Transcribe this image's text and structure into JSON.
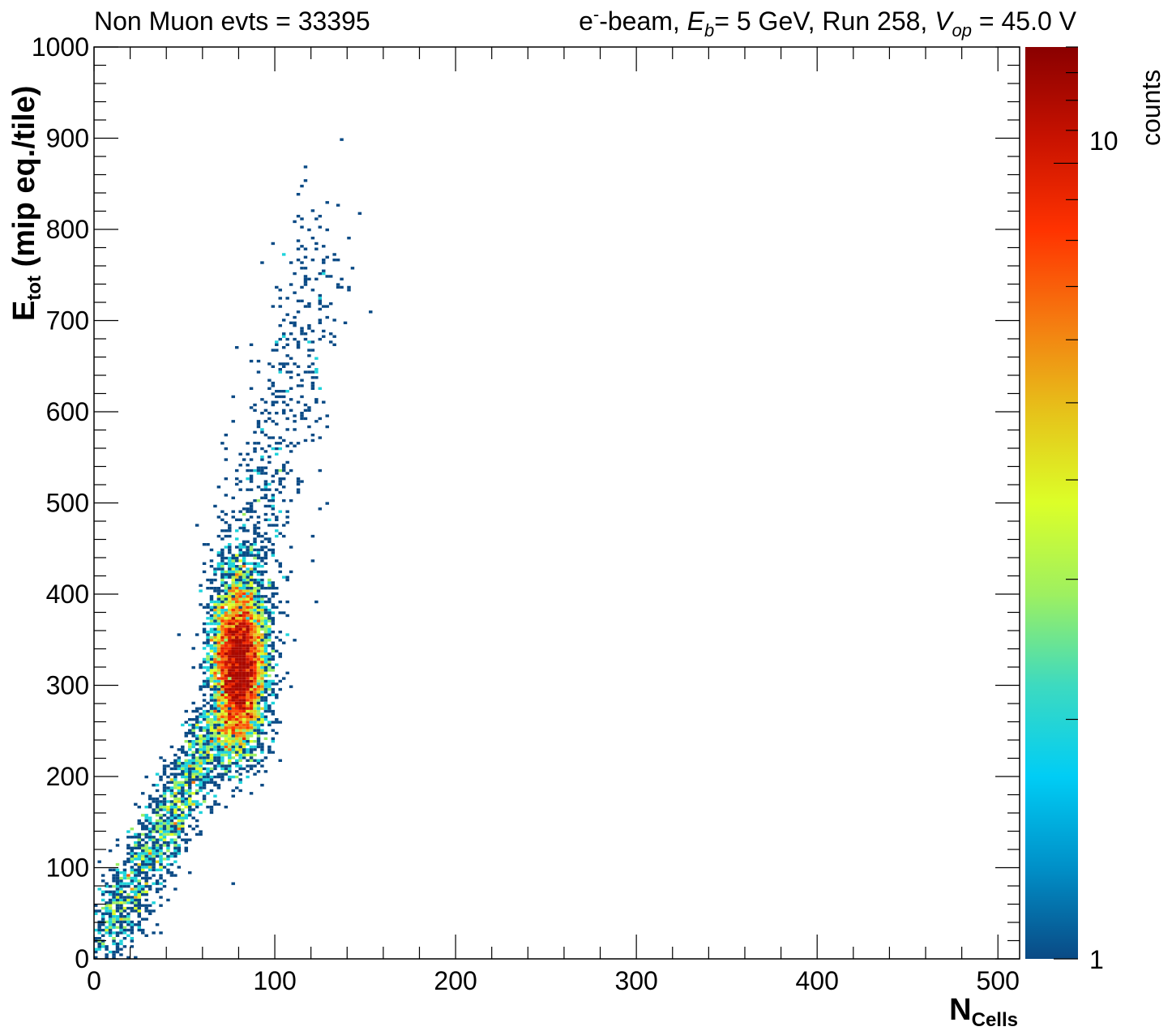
{
  "header": {
    "left": "Non Muon evts = 33395",
    "right_prefix_e": "e",
    "right_sup": "-",
    "right_beam": "-beam, ",
    "right_E": "E",
    "right_b": "b",
    "right_energy": "= 5 GeV, Run 258, ",
    "right_V": "V",
    "right_op": "op",
    "right_voltage": " = 45.0 V"
  },
  "colorbar": {
    "title": "counts",
    "tick_labels": [
      "1",
      "10"
    ],
    "range": [
      1,
      14
    ],
    "scale": "log",
    "palette": [
      "#0a4a85",
      "#0090c8",
      "#00cdf5",
      "#3ddac0",
      "#9ef060",
      "#dcff28",
      "#e6c21a",
      "#f57a10",
      "#ff3200",
      "#c81200",
      "#8a0000"
    ]
  },
  "chart_data": {
    "type": "heatmap",
    "title": "",
    "xlabel": "N",
    "xlabel_sub": "Cells",
    "ylabel": "E",
    "ylabel_sub": "tot",
    "ylabel_rest": " (mip eq./tile)",
    "xlim": [
      0,
      512
    ],
    "ylim": [
      0,
      1000
    ],
    "x_ticks": [
      0,
      100,
      200,
      300,
      400,
      500
    ],
    "x_tick_labels": [
      "0",
      "100",
      "200",
      "300",
      "400",
      "500"
    ],
    "y_ticks": [
      0,
      100,
      200,
      300,
      400,
      500,
      600,
      700,
      800,
      900,
      1000
    ],
    "y_tick_labels": [
      "0",
      "100",
      "200",
      "300",
      "400",
      "500",
      "600",
      "700",
      "800",
      "900",
      "1000"
    ],
    "z_scale": "log",
    "z_range": [
      1,
      14
    ],
    "total_entries": 33395,
    "density_components": [
      {
        "region": "core",
        "x_mean": 80,
        "y_mean": 320,
        "x_sd": 7,
        "y_sd": 45,
        "weight": 0.62,
        "peak_count": 7
      },
      {
        "region": "halo",
        "x_mean": 82,
        "y_mean": 345,
        "x_sd": 9,
        "y_sd": 55,
        "weight": 0.12,
        "peak_count": 2
      },
      {
        "region": "low-energy band",
        "x_start": 2,
        "x_end": 70,
        "y_start": 5,
        "y_end": 260,
        "x_sd": 7,
        "weight": 0.2,
        "peak_count": 2
      },
      {
        "region": "high-energy tail",
        "x_start": 85,
        "x_end": 125,
        "y_start": 420,
        "y_end": 790,
        "x_sd": 12,
        "weight": 0.06,
        "peak_count": 1
      }
    ]
  }
}
